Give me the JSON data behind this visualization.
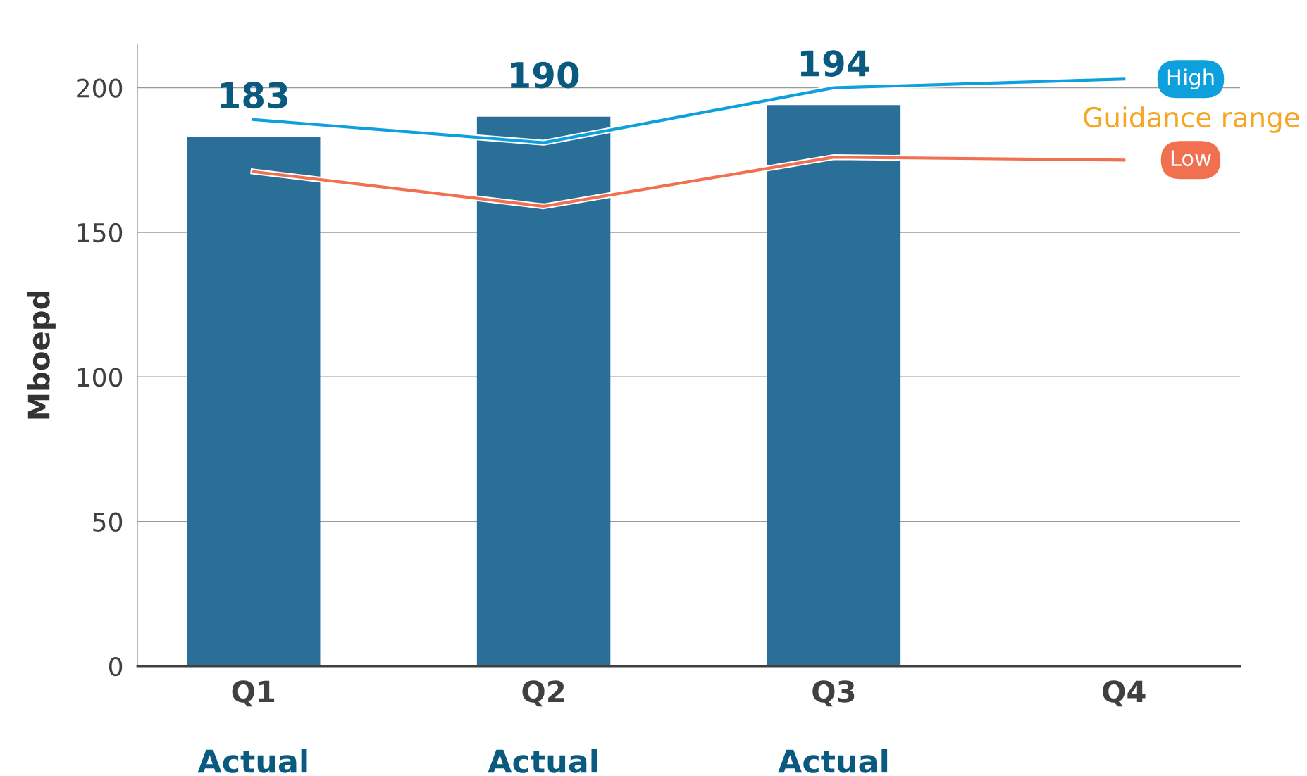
{
  "chart_data": {
    "type": "bar",
    "ylabel": "Mboepd",
    "categories": [
      "Q1",
      "Q2",
      "Q3",
      "Q4"
    ],
    "series": [
      {
        "color": "#2a6f97",
        "values": [
          183,
          190,
          194,
          null
        ],
        "value_labels": [
          "183",
          "190",
          "194",
          null
        ]
      },
      {
        "type": "line",
        "name": "High",
        "color": "#0ea0dc",
        "values": [
          189,
          181,
          200,
          203
        ]
      },
      {
        "type": "line",
        "name": "Low",
        "color": "#f0704f",
        "values": [
          171,
          159,
          176,
          175
        ]
      }
    ],
    "ylim": [
      0,
      215
    ],
    "yticks": [
      0,
      50,
      100,
      150,
      200
    ],
    "grid": "y",
    "legend": false,
    "marker": "none",
    "line_style": "solid",
    "annotations": [
      "Actual",
      "Actual",
      "Actual",
      "Guidance range"
    ]
  }
}
